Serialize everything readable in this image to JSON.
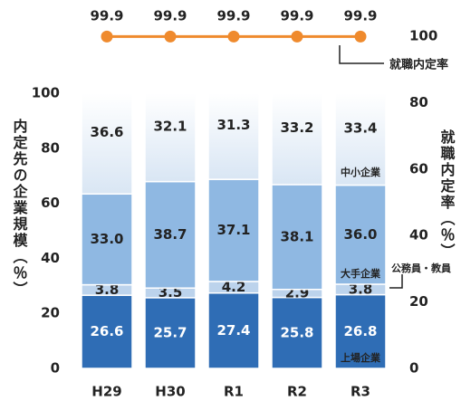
{
  "chart_data": {
    "type": "bar",
    "stacked": true,
    "categories": [
      "H29",
      "H30",
      "R1",
      "R2",
      "R3"
    ],
    "ylabel": "内定先の企業規模（％）",
    "y2label": "就職内定率（％）",
    "ylim": [
      0,
      100
    ],
    "yticks": [
      0,
      20,
      40,
      60,
      80,
      100
    ],
    "y2lim": [
      0,
      100
    ],
    "y2ticks": [
      0,
      20,
      40,
      60,
      80,
      100
    ],
    "series": [
      {
        "name": "上場企業",
        "color": "#2f6db5",
        "values": [
          26.6,
          25.7,
          27.4,
          25.8,
          26.8
        ],
        "value_labels": [
          "26.6",
          "25.7",
          "27.4",
          "25.8",
          "26.8"
        ]
      },
      {
        "name": "公務員・教員",
        "color": "#bcd3ec",
        "values": [
          3.8,
          3.5,
          4.2,
          2.9,
          3.8
        ],
        "value_labels": [
          "3.8",
          "3.5",
          "4.2",
          "2.9",
          "3.8"
        ]
      },
      {
        "name": "大手企業",
        "color": "#8fb8e2",
        "values": [
          33.0,
          38.7,
          37.1,
          38.1,
          36.0
        ],
        "value_labels": [
          "33.0",
          "38.7",
          "37.1",
          "38.1",
          "36.0"
        ]
      },
      {
        "name": "中小企業",
        "color": "#d9e6f4",
        "values": [
          36.6,
          32.1,
          31.3,
          33.2,
          33.4
        ],
        "value_labels": [
          "36.6",
          "32.1",
          "31.3",
          "33.2",
          "33.4"
        ]
      },
      {
        "name": "就職内定率",
        "type": "line",
        "axis": "y2",
        "color": "#ef8a2d",
        "values": [
          99.9,
          99.9,
          99.9,
          99.9,
          99.9
        ],
        "value_labels": [
          "99.9",
          "99.9",
          "99.9",
          "99.9",
          "99.9"
        ]
      }
    ]
  }
}
